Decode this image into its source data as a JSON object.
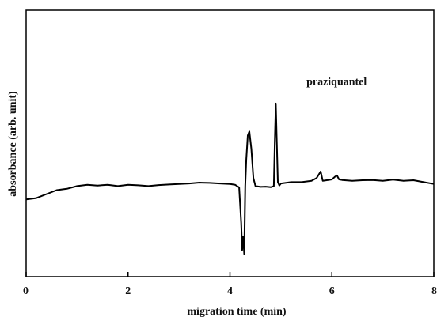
{
  "chart_data": {
    "type": "line",
    "title": "",
    "xlabel": "migration time (min)",
    "ylabel": "absorbance (arb. unit)",
    "xlim": [
      0,
      8
    ],
    "ylim": [
      0,
      100
    ],
    "y_ticks_shown": false,
    "x_ticks": [
      0,
      2,
      4,
      6,
      8
    ],
    "x_tick_labels": [
      "0",
      "2",
      "4",
      "6",
      "8"
    ],
    "grid": false,
    "legend": "none",
    "line_color": "#000000",
    "annotations": [
      {
        "text": "praziquantel",
        "x": 5.5,
        "y": 72
      }
    ],
    "series": [
      {
        "x": [
          0.0,
          0.2,
          0.4,
          0.6,
          0.8,
          1.0,
          1.2,
          1.4,
          1.6,
          1.8,
          2.0,
          2.2,
          2.4,
          2.6,
          2.8,
          3.0,
          3.2,
          3.4,
          3.6,
          3.8,
          4.0,
          4.1,
          4.18,
          4.22,
          4.24,
          4.26,
          4.28,
          4.3,
          4.32,
          4.35,
          4.38,
          4.42,
          4.46,
          4.5,
          4.6,
          4.7,
          4.8,
          4.86,
          4.88,
          4.9,
          4.92,
          4.94,
          4.97,
          5.0,
          5.2,
          5.4,
          5.6,
          5.7,
          5.78,
          5.82,
          5.9,
          6.0,
          6.06,
          6.1,
          6.14,
          6.2,
          6.4,
          6.6,
          6.8,
          7.0,
          7.2,
          7.4,
          7.6,
          7.8,
          8.0
        ],
        "y": [
          29.0,
          29.5,
          31.0,
          32.5,
          33.0,
          34.0,
          34.5,
          34.2,
          34.5,
          34.0,
          34.5,
          34.3,
          34.0,
          34.4,
          34.6,
          34.8,
          35.0,
          35.3,
          35.2,
          35.0,
          34.8,
          34.5,
          33.5,
          20.0,
          10.0,
          15.0,
          8.5,
          34.0,
          44.0,
          53.0,
          54.5,
          48.0,
          37.0,
          34.0,
          33.7,
          33.8,
          33.6,
          34.0,
          50.0,
          65.0,
          50.0,
          35.5,
          34.2,
          35.0,
          35.5,
          35.5,
          36.0,
          37.0,
          39.5,
          36.0,
          36.2,
          36.5,
          37.5,
          38.0,
          36.5,
          36.3,
          36.0,
          36.2,
          36.3,
          36.0,
          36.4,
          36.0,
          36.2,
          35.5,
          34.8
        ]
      }
    ]
  }
}
